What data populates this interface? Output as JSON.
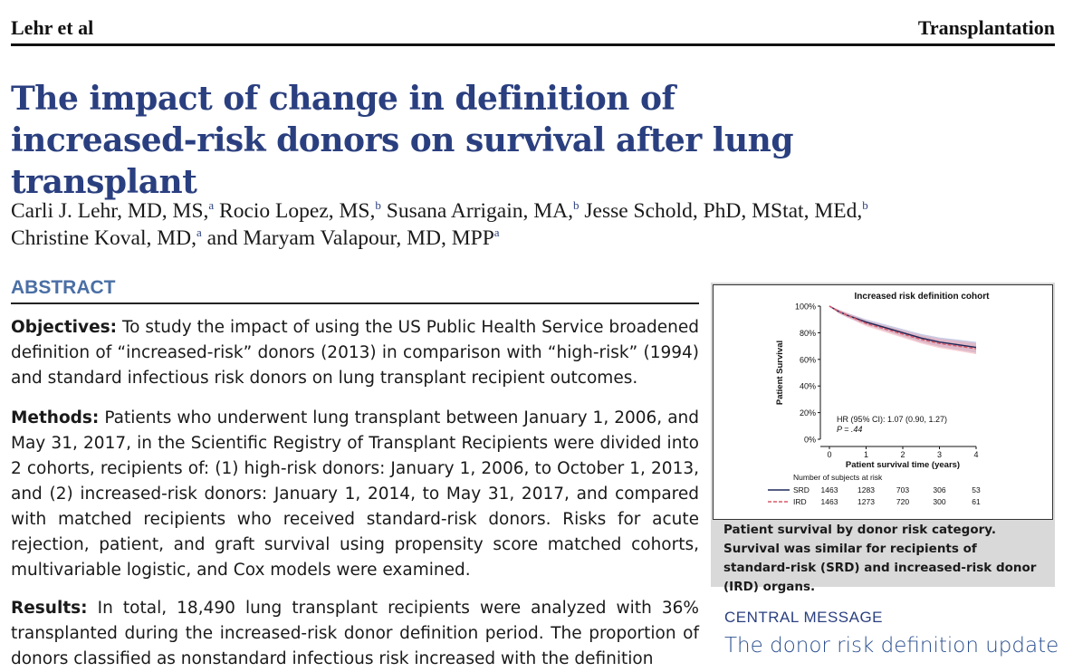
{
  "header": {
    "left": "Lehr et al",
    "right": "Transplantation"
  },
  "title": "The impact of change in definition of increased-risk donors on survival after lung transplant",
  "authors": [
    {
      "name": "Carli J. Lehr, MD, MS,",
      "sup": "a"
    },
    {
      "name": "Rocio Lopez, MS,",
      "sup": "b"
    },
    {
      "name": "Susana Arrigain, MA,",
      "sup": "b"
    },
    {
      "name": "Jesse Schold, PhD, MStat, MEd,",
      "sup": "b"
    },
    {
      "name": "Christine Koval, MD,",
      "sup": "a"
    },
    {
      "name": "and Maryam Valapour, MD, MPP",
      "sup": "a"
    }
  ],
  "abstract": {
    "heading": "ABSTRACT",
    "objectives_label": "Objectives:",
    "objectives_text": "To study the impact of using the US Public Health Service broadened definition of “increased-risk” donors (2013) in comparison with “high-risk” (1994) and standard infectious risk donors on lung transplant recipient outcomes.",
    "methods_label": "Methods:",
    "methods_text": "Patients who underwent lung transplant between January 1, 2006, and May 31, 2017, in the Scientific Registry of Transplant Recipients were divided into 2 cohorts, recipients of: (1) high-risk donors: January 1, 2006, to October 1, 2013, and (2) increased-risk donors: January 1, 2014, to May 31, 2017, and compared with matched recipients who received standard-risk donors. Risks for acute rejection, patient, and graft survival using propensity score matched cohorts, multivariable logistic, and Cox models were examined.",
    "results_label": "Results:",
    "results_text": "In total, 18,490 lung transplant recipients were analyzed with 36% transplanted during the increased-risk donor definition period. The proportion of donors classified as nonstandard infectious risk increased with the definition"
  },
  "figure": {
    "caption": "Patient survival by donor risk category. Survival was similar for recipients of standard-risk (SRD) and increased-risk donor (IRD) organs."
  },
  "chart_data": {
    "type": "line",
    "title": "Increased risk definition cohort",
    "xlabel": "Patient survival time (years)",
    "ylabel": "Patient Survival",
    "xlim": [
      0,
      4
    ],
    "ylim": [
      0,
      100
    ],
    "x_ticks": [
      0,
      1,
      2,
      3,
      4
    ],
    "y_ticks": [
      "0%",
      "20%",
      "40%",
      "60%",
      "80%",
      "100%"
    ],
    "series": [
      {
        "name": "SRD",
        "color": "#1f2a5a",
        "style": "solid",
        "x": [
          0,
          0.25,
          0.5,
          1,
          1.5,
          2,
          2.5,
          3,
          3.5,
          4
        ],
        "y": [
          100,
          96,
          93,
          88,
          84,
          80,
          76,
          73,
          71,
          69
        ]
      },
      {
        "name": "IRD",
        "color": "#d65a6a",
        "style": "dashed",
        "x": [
          0,
          0.25,
          0.5,
          1,
          1.5,
          2,
          2.5,
          3,
          3.5,
          4
        ],
        "y": [
          100,
          96,
          93,
          87,
          83,
          79,
          75,
          72,
          70,
          68
        ]
      }
    ],
    "annotation_hr": "HR (95% CI): 1.07 (0.90, 1.27)",
    "annotation_p": "P = .44",
    "risk_table_title": "Number of subjects at risk",
    "risk_table": [
      {
        "label": "SRD",
        "counts": [
          "1463",
          "1283",
          "703",
          "306",
          "53"
        ]
      },
      {
        "label": "IRD",
        "counts": [
          "1463",
          "1273",
          "720",
          "300",
          "61"
        ]
      }
    ]
  },
  "central": {
    "heading": "CENTRAL MESSAGE",
    "message": "The donor risk definition update"
  }
}
